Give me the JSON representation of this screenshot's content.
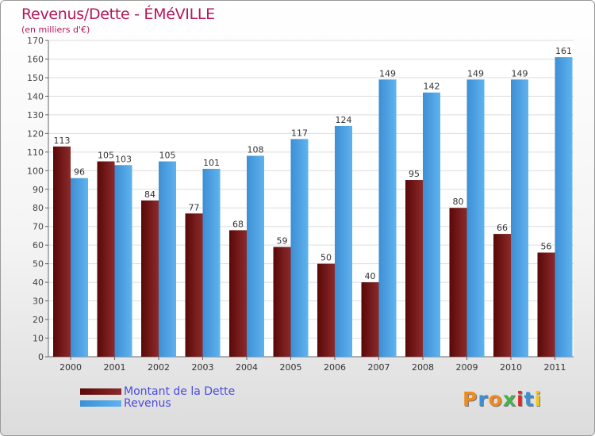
{
  "chart_data": {
    "type": "bar",
    "title": "Revenus/Dette - ÉMéVILLE",
    "subtitle": "(en milliers d'€)",
    "categories": [
      "2000",
      "2001",
      "2002",
      "2003",
      "2004",
      "2005",
      "2006",
      "2007",
      "2008",
      "2009",
      "2010",
      "2011"
    ],
    "series": [
      {
        "name": "Montant de la Dette",
        "color": "#7a1414",
        "values": [
          113,
          105,
          84,
          77,
          68,
          59,
          50,
          40,
          95,
          80,
          66,
          56
        ]
      },
      {
        "name": "Revenus",
        "color": "#4aa3e8",
        "values": [
          96,
          103,
          105,
          101,
          108,
          117,
          124,
          149,
          142,
          149,
          149,
          161
        ]
      }
    ],
    "ylim": [
      0,
      170
    ],
    "ytick_step": 10,
    "grid": true,
    "legend": "bottom-left"
  },
  "logo": {
    "text": "Proxiti",
    "letter_colors": [
      "#f08a1c",
      "#3a8fd8",
      "#f08a1c",
      "#45b34a",
      "#d82a2a",
      "#3a8fd8",
      "#f0c81c"
    ]
  }
}
